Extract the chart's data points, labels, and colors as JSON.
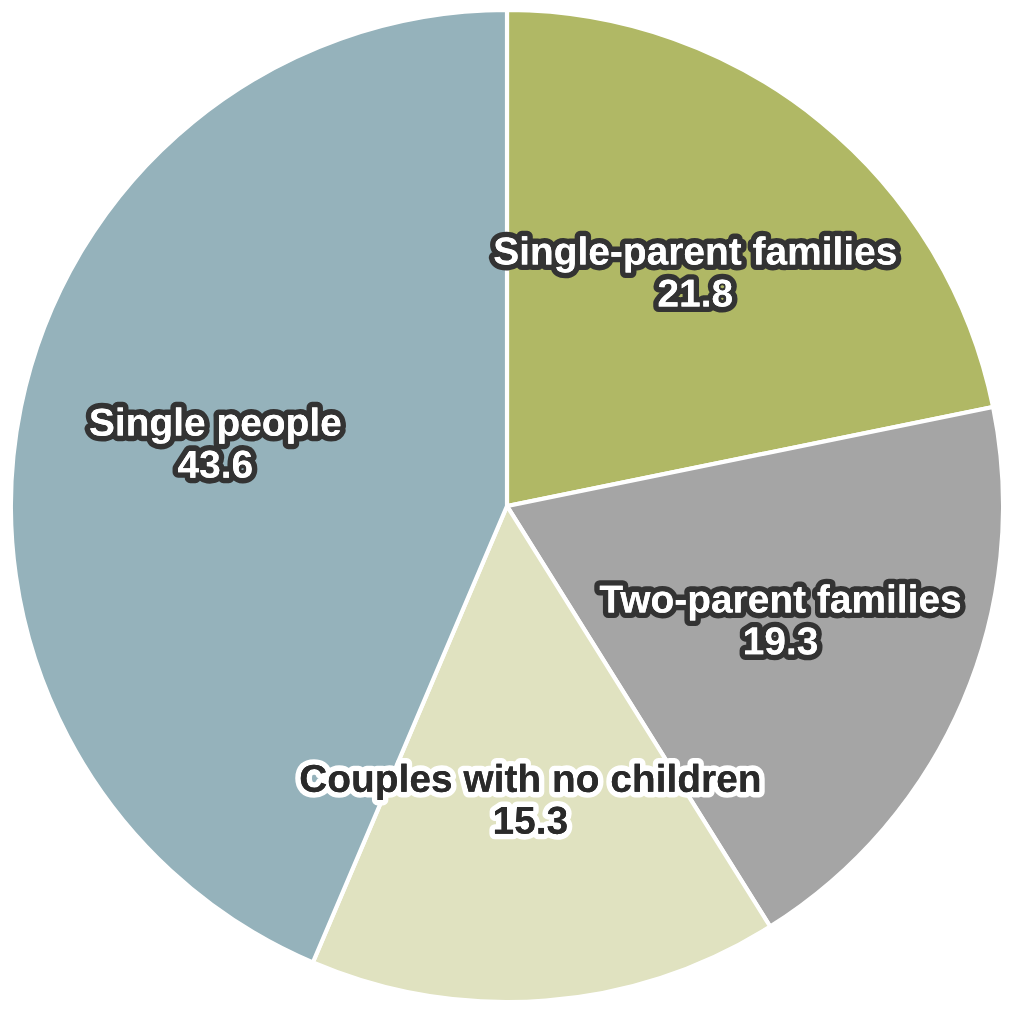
{
  "chart_data": {
    "type": "pie",
    "categories": [
      "Single-parent families",
      "Two-parent families",
      "Couples with no children",
      "Single people"
    ],
    "values": [
      21.8,
      19.3,
      15.3,
      43.6
    ],
    "colors": [
      "#b0b865",
      "#a5a5a5",
      "#e0e2c0",
      "#95b2bb"
    ],
    "data_labels": true,
    "legend": false
  }
}
